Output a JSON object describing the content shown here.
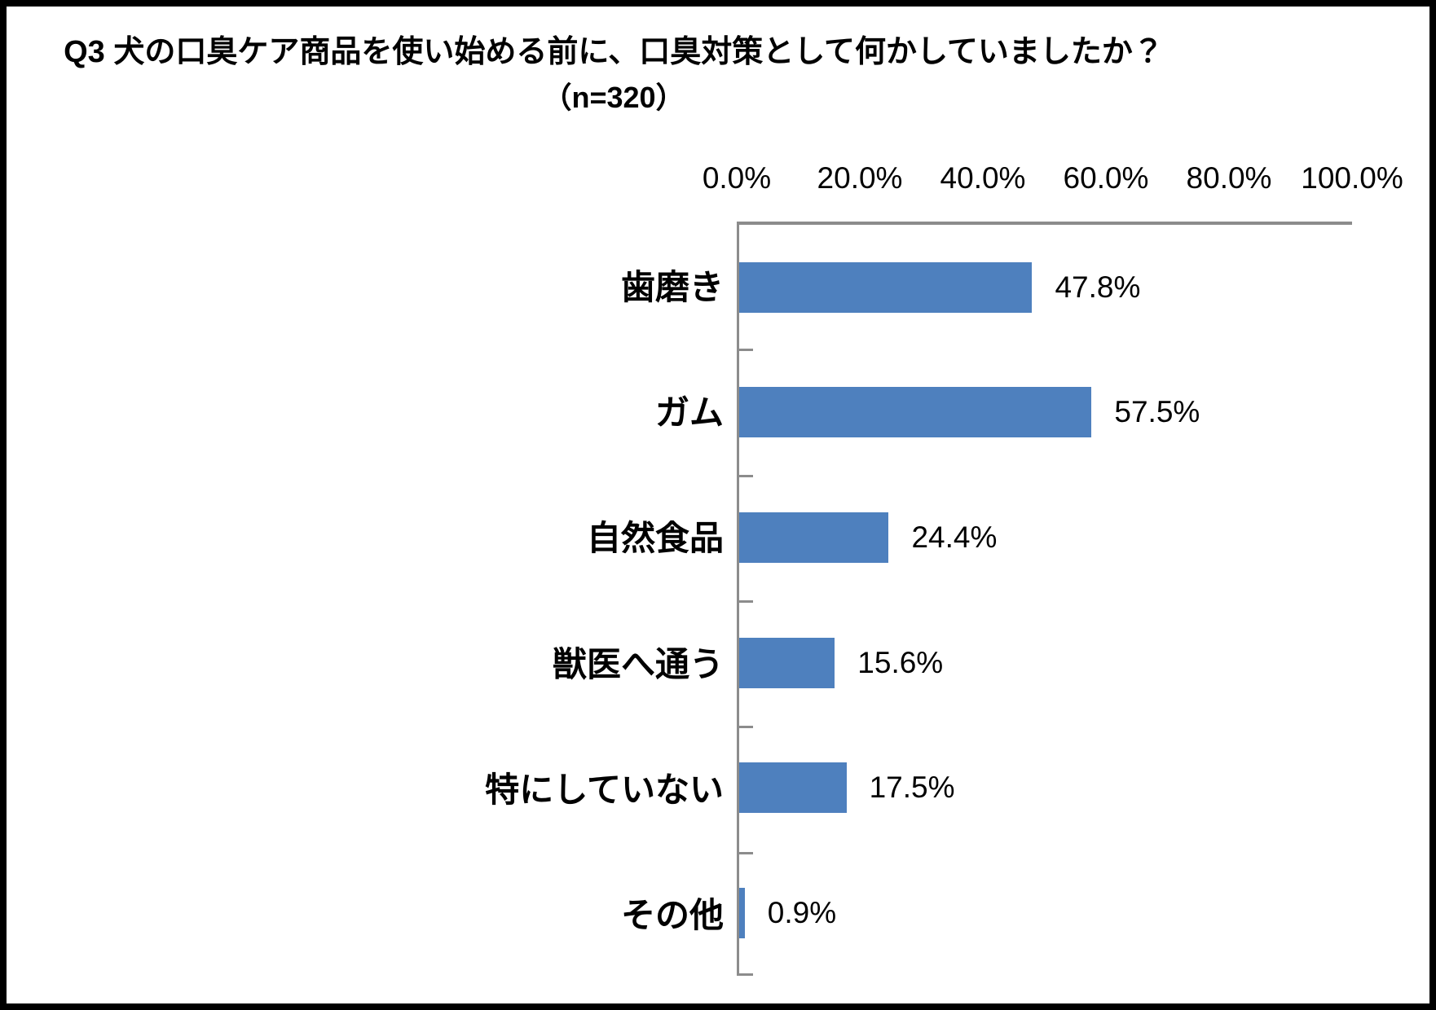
{
  "title": "Q3 犬の口臭ケア商品を使い始める前に、口臭対策として何かしていましたか？",
  "subtitle": "（n=320）",
  "chart_data": {
    "type": "bar",
    "orientation": "horizontal",
    "title": "Q3 犬の口臭ケア商品を使い始める前に、口臭対策として何かしていましたか？",
    "subtitle": "（n=320）",
    "sample_size": 320,
    "categories": [
      "歯磨き",
      "ガム",
      "自然食品",
      "獣医へ通う",
      "特にしていない",
      "その他"
    ],
    "values": [
      47.8,
      57.5,
      24.4,
      15.6,
      17.5,
      0.9
    ],
    "value_labels": [
      "47.8%",
      "57.5%",
      "24.4%",
      "15.6%",
      "17.5%",
      "0.9%"
    ],
    "x_tick_labels": [
      "0.0%",
      "20.0%",
      "40.0%",
      "60.0%",
      "80.0%",
      "100.0%"
    ],
    "xlim": [
      0,
      100
    ],
    "xlabel": "",
    "ylabel": "",
    "grid": false,
    "legend": false,
    "bar_color": "#4E80BE",
    "axis_color": "#8C8C8C",
    "value_axis_position": "top"
  }
}
